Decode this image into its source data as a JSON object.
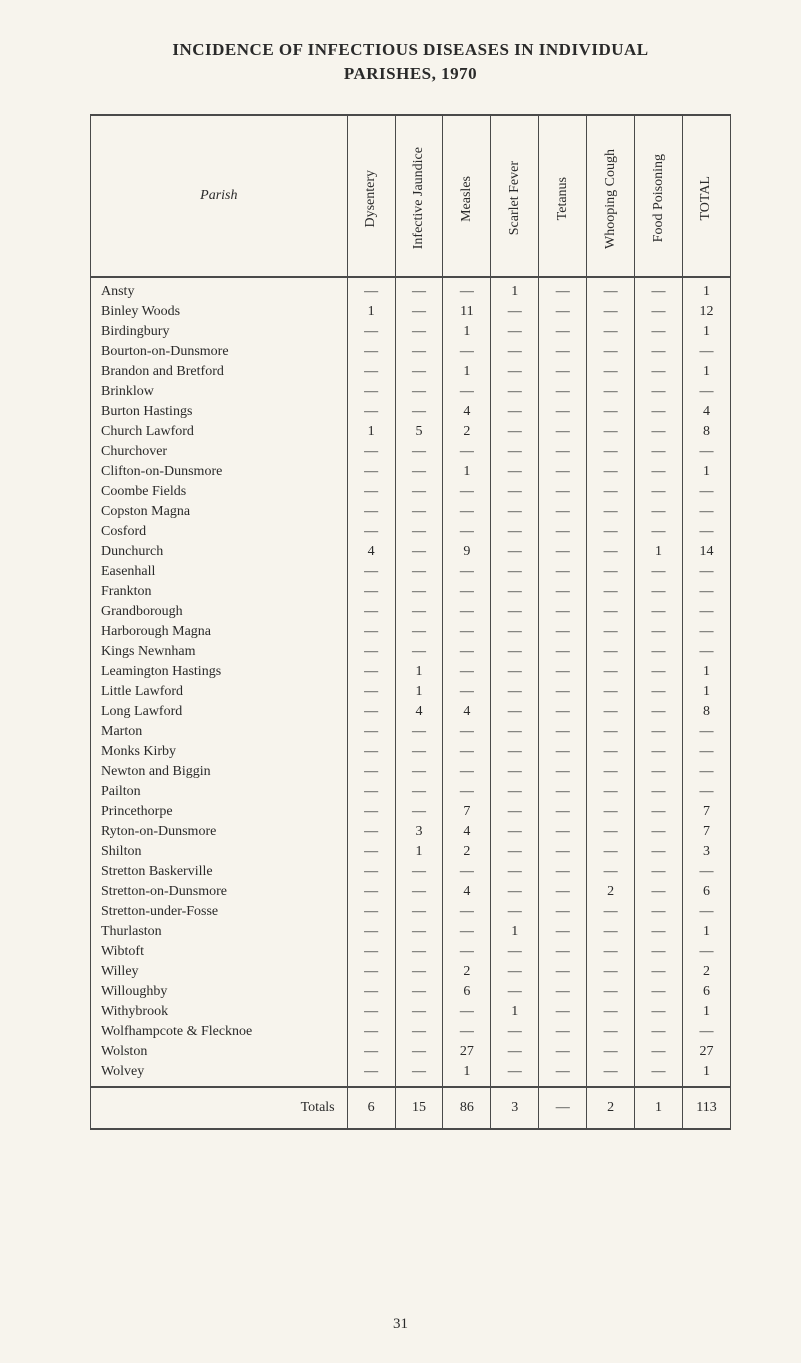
{
  "title_line1": "INCIDENCE OF INFECTIOUS DISEASES IN INDIVIDUAL",
  "title_line2": "PARISHES, 1970",
  "page_number": "31",
  "columns": [
    "Dysentery",
    "Infective Jaundice",
    "Measles",
    "Scarlet Fever",
    "Tetanus",
    "Whooping Cough",
    "Food Poisoning",
    "TOTAL"
  ],
  "parish_header": "Parish",
  "totals_label": "Totals",
  "dash": "—",
  "rows": [
    {
      "parish": "Ansty",
      "v": [
        "—",
        "—",
        "—",
        "1",
        "—",
        "—",
        "—",
        "1"
      ]
    },
    {
      "parish": "Binley Woods",
      "v": [
        "1",
        "—",
        "11",
        "—",
        "—",
        "—",
        "—",
        "12"
      ]
    },
    {
      "parish": "Birdingbury",
      "v": [
        "—",
        "—",
        "1",
        "—",
        "—",
        "—",
        "—",
        "1"
      ]
    },
    {
      "parish": "Bourton-on-Dunsmore",
      "v": [
        "—",
        "—",
        "—",
        "—",
        "—",
        "—",
        "—",
        "—"
      ]
    },
    {
      "parish": "Brandon and Bretford",
      "v": [
        "—",
        "—",
        "1",
        "—",
        "—",
        "—",
        "—",
        "1"
      ]
    },
    {
      "parish": "Brinklow",
      "v": [
        "—",
        "—",
        "—",
        "—",
        "—",
        "—",
        "—",
        "—"
      ]
    },
    {
      "parish": "Burton Hastings",
      "v": [
        "—",
        "—",
        "4",
        "—",
        "—",
        "—",
        "—",
        "4"
      ]
    },
    {
      "parish": "Church Lawford",
      "v": [
        "1",
        "5",
        "2",
        "—",
        "—",
        "—",
        "—",
        "8"
      ]
    },
    {
      "parish": "Churchover",
      "v": [
        "—",
        "—",
        "—",
        "—",
        "—",
        "—",
        "—",
        "—"
      ]
    },
    {
      "parish": "Clifton-on-Dunsmore",
      "v": [
        "—",
        "—",
        "1",
        "—",
        "—",
        "—",
        "—",
        "1"
      ]
    },
    {
      "parish": "Coombe Fields",
      "v": [
        "—",
        "—",
        "—",
        "—",
        "—",
        "—",
        "—",
        "—"
      ]
    },
    {
      "parish": "Copston Magna",
      "v": [
        "—",
        "—",
        "—",
        "—",
        "—",
        "—",
        "—",
        "—"
      ]
    },
    {
      "parish": "Cosford",
      "v": [
        "—",
        "—",
        "—",
        "—",
        "—",
        "—",
        "—",
        "—"
      ]
    },
    {
      "parish": "Dunchurch",
      "v": [
        "4",
        "—",
        "9",
        "—",
        "—",
        "—",
        "1",
        "14"
      ]
    },
    {
      "parish": "Easenhall",
      "v": [
        "—",
        "—",
        "—",
        "—",
        "—",
        "—",
        "—",
        "—"
      ]
    },
    {
      "parish": "Frankton",
      "v": [
        "—",
        "—",
        "—",
        "—",
        "—",
        "—",
        "—",
        "—"
      ]
    },
    {
      "parish": "Grandborough",
      "v": [
        "—",
        "—",
        "—",
        "—",
        "—",
        "—",
        "—",
        "—"
      ]
    },
    {
      "parish": "Harborough Magna",
      "v": [
        "—",
        "—",
        "—",
        "—",
        "—",
        "—",
        "—",
        "—"
      ]
    },
    {
      "parish": "Kings Newnham",
      "v": [
        "—",
        "—",
        "—",
        "—",
        "—",
        "—",
        "—",
        "—"
      ]
    },
    {
      "parish": "Leamington Hastings",
      "v": [
        "—",
        "1",
        "—",
        "—",
        "—",
        "—",
        "—",
        "1"
      ]
    },
    {
      "parish": "Little Lawford",
      "v": [
        "—",
        "1",
        "—",
        "—",
        "—",
        "—",
        "—",
        "1"
      ]
    },
    {
      "parish": "Long Lawford",
      "v": [
        "—",
        "4",
        "4",
        "—",
        "—",
        "—",
        "—",
        "8"
      ]
    },
    {
      "parish": "Marton",
      "v": [
        "—",
        "—",
        "—",
        "—",
        "—",
        "—",
        "—",
        "—"
      ]
    },
    {
      "parish": "Monks Kirby",
      "v": [
        "—",
        "—",
        "—",
        "—",
        "—",
        "—",
        "—",
        "—"
      ]
    },
    {
      "parish": "Newton and Biggin",
      "v": [
        "—",
        "—",
        "—",
        "—",
        "—",
        "—",
        "—",
        "—"
      ]
    },
    {
      "parish": "Pailton",
      "v": [
        "—",
        "—",
        "—",
        "—",
        "—",
        "—",
        "—",
        "—"
      ]
    },
    {
      "parish": "Princethorpe",
      "v": [
        "—",
        "—",
        "7",
        "—",
        "—",
        "—",
        "—",
        "7"
      ]
    },
    {
      "parish": "Ryton-on-Dunsmore",
      "v": [
        "—",
        "3",
        "4",
        "—",
        "—",
        "—",
        "—",
        "7"
      ]
    },
    {
      "parish": "Shilton",
      "v": [
        "—",
        "1",
        "2",
        "—",
        "—",
        "—",
        "—",
        "3"
      ]
    },
    {
      "parish": "Stretton Baskerville",
      "v": [
        "—",
        "—",
        "—",
        "—",
        "—",
        "—",
        "—",
        "—"
      ]
    },
    {
      "parish": "Stretton-on-Dunsmore",
      "v": [
        "—",
        "—",
        "4",
        "—",
        "—",
        "2",
        "—",
        "6"
      ]
    },
    {
      "parish": "Stretton-under-Fosse",
      "v": [
        "—",
        "—",
        "—",
        "—",
        "—",
        "—",
        "—",
        "—"
      ]
    },
    {
      "parish": "Thurlaston",
      "v": [
        "—",
        "—",
        "—",
        "1",
        "—",
        "—",
        "—",
        "1"
      ]
    },
    {
      "parish": "Wibtoft",
      "v": [
        "—",
        "—",
        "—",
        "—",
        "—",
        "—",
        "—",
        "—"
      ]
    },
    {
      "parish": "Willey",
      "v": [
        "—",
        "—",
        "2",
        "—",
        "—",
        "—",
        "—",
        "2"
      ]
    },
    {
      "parish": "Willoughby",
      "v": [
        "—",
        "—",
        "6",
        "—",
        "—",
        "—",
        "—",
        "6"
      ]
    },
    {
      "parish": "Withybrook",
      "v": [
        "—",
        "—",
        "—",
        "1",
        "—",
        "—",
        "—",
        "1"
      ]
    },
    {
      "parish": "Wolfhampcote & Flecknoe",
      "v": [
        "—",
        "—",
        "—",
        "—",
        "—",
        "—",
        "—",
        "—"
      ]
    },
    {
      "parish": "Wolston",
      "v": [
        "—",
        "—",
        "27",
        "—",
        "—",
        "—",
        "—",
        "27"
      ]
    },
    {
      "parish": "Wolvey",
      "v": [
        "—",
        "—",
        "1",
        "—",
        "—",
        "—",
        "—",
        "1"
      ]
    }
  ],
  "totals": [
    "6",
    "15",
    "86",
    "3",
    "—",
    "2",
    "1",
    "113"
  ]
}
